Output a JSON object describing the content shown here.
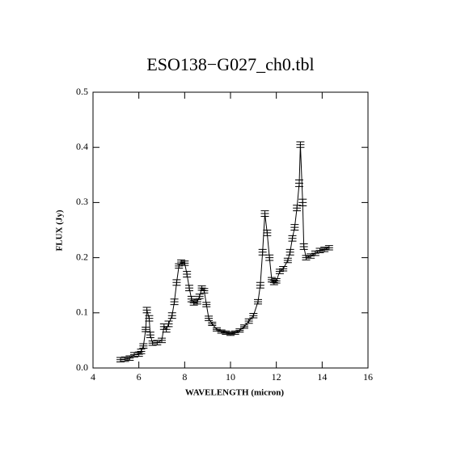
{
  "chart_data": {
    "type": "line",
    "title": "ESO138−G027_ch0.tbl",
    "xlabel": "WAVELENGTH (micron)",
    "ylabel": "FLUX (Jy)",
    "color": "#000000",
    "x": [
      5.2,
      5.4,
      5.6,
      5.8,
      6.0,
      6.1,
      6.2,
      6.3,
      6.35,
      6.45,
      6.5,
      6.6,
      6.8,
      7.0,
      7.1,
      7.2,
      7.3,
      7.45,
      7.55,
      7.65,
      7.75,
      7.85,
      8.0,
      8.1,
      8.2,
      8.3,
      8.4,
      8.55,
      8.65,
      8.75,
      8.85,
      8.95,
      9.05,
      9.2,
      9.4,
      9.6,
      9.8,
      10.0,
      10.2,
      10.4,
      10.6,
      10.8,
      11.0,
      11.2,
      11.3,
      11.4,
      11.5,
      11.6,
      11.7,
      11.8,
      11.9,
      12.0,
      12.15,
      12.3,
      12.5,
      12.6,
      12.7,
      12.8,
      12.9,
      13.0,
      13.05,
      13.15,
      13.2,
      13.3,
      13.5,
      13.7,
      13.9,
      14.1,
      14.3
    ],
    "values": [
      0.015,
      0.016,
      0.018,
      0.024,
      0.025,
      0.03,
      0.04,
      0.07,
      0.105,
      0.09,
      0.06,
      0.045,
      0.046,
      0.05,
      0.075,
      0.07,
      0.08,
      0.095,
      0.12,
      0.155,
      0.185,
      0.192,
      0.19,
      0.17,
      0.145,
      0.125,
      0.118,
      0.12,
      0.13,
      0.145,
      0.14,
      0.115,
      0.09,
      0.08,
      0.07,
      0.066,
      0.064,
      0.062,
      0.064,
      0.068,
      0.075,
      0.085,
      0.095,
      0.12,
      0.15,
      0.21,
      0.28,
      0.245,
      0.2,
      0.16,
      0.155,
      0.158,
      0.175,
      0.18,
      0.195,
      0.21,
      0.235,
      0.255,
      0.29,
      0.335,
      0.405,
      0.3,
      0.22,
      0.2,
      0.203,
      0.208,
      0.213,
      0.215,
      0.218
    ],
    "errors": [
      0.004,
      0.004,
      0.004,
      0.004,
      0.004,
      0.004,
      0.004,
      0.004,
      0.005,
      0.005,
      0.005,
      0.004,
      0.004,
      0.004,
      0.005,
      0.005,
      0.005,
      0.005,
      0.005,
      0.005,
      0.004,
      0.004,
      0.004,
      0.005,
      0.005,
      0.005,
      0.004,
      0.004,
      0.004,
      0.004,
      0.004,
      0.004,
      0.004,
      0.003,
      0.003,
      0.003,
      0.003,
      0.003,
      0.003,
      0.003,
      0.003,
      0.004,
      0.004,
      0.004,
      0.005,
      0.005,
      0.005,
      0.005,
      0.005,
      0.004,
      0.004,
      0.004,
      0.004,
      0.004,
      0.004,
      0.005,
      0.005,
      0.005,
      0.005,
      0.006,
      0.005,
      0.006,
      0.005,
      0.004,
      0.004,
      0.004,
      0.004,
      0.004,
      0.004
    ],
    "xlim": [
      4,
      16
    ],
    "xticks": [
      4,
      6,
      8,
      10,
      12,
      14,
      16
    ],
    "ylim": [
      0,
      0.5
    ],
    "yticks": [
      {
        "value": 0,
        "label": "0.0"
      },
      0.1,
      0.2,
      0.3,
      0.4,
      {
        "value": 0.5,
        "label": "0.5"
      }
    ]
  }
}
